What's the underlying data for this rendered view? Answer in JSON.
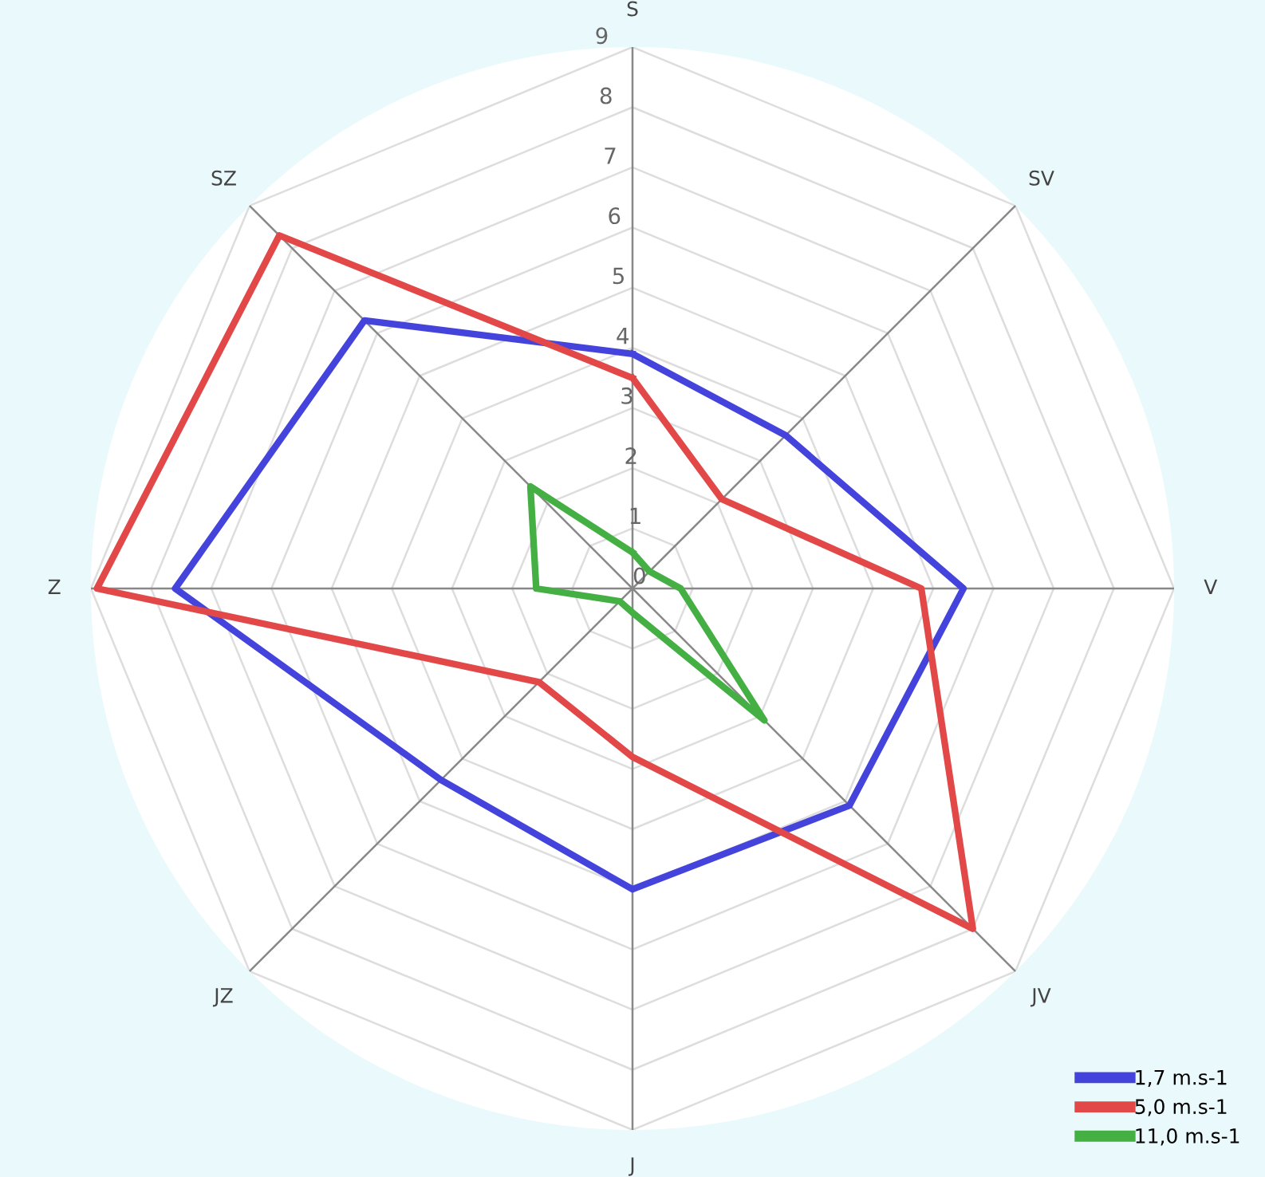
{
  "chart_data": {
    "type": "radar",
    "categories": [
      "S",
      "SV",
      "V",
      "JV",
      "J",
      "JZ",
      "Z",
      "SZ"
    ],
    "ylim": [
      0,
      9
    ],
    "yticks": [
      0,
      1,
      2,
      3,
      4,
      5,
      6,
      7,
      8,
      9
    ],
    "grid": true,
    "legend": "bottom right",
    "marker": "none",
    "line_style": "solid",
    "series": [
      {
        "name": "1,7 m.s-1",
        "color": "#4444dd",
        "values": [
          3.9,
          3.6,
          5.5,
          5.1,
          5.0,
          4.5,
          7.6,
          6.3
        ]
      },
      {
        "name": "5,0 m.s-1",
        "color": "#e34848",
        "values": [
          3.5,
          2.1,
          4.8,
          8.0,
          2.8,
          2.2,
          8.9,
          8.3
        ]
      },
      {
        "name": "11,0 m.s-1",
        "color": "#44b044",
        "values": [
          0.6,
          0.4,
          0.8,
          3.1,
          0.4,
          0.3,
          1.6,
          2.4
        ]
      }
    ]
  }
}
